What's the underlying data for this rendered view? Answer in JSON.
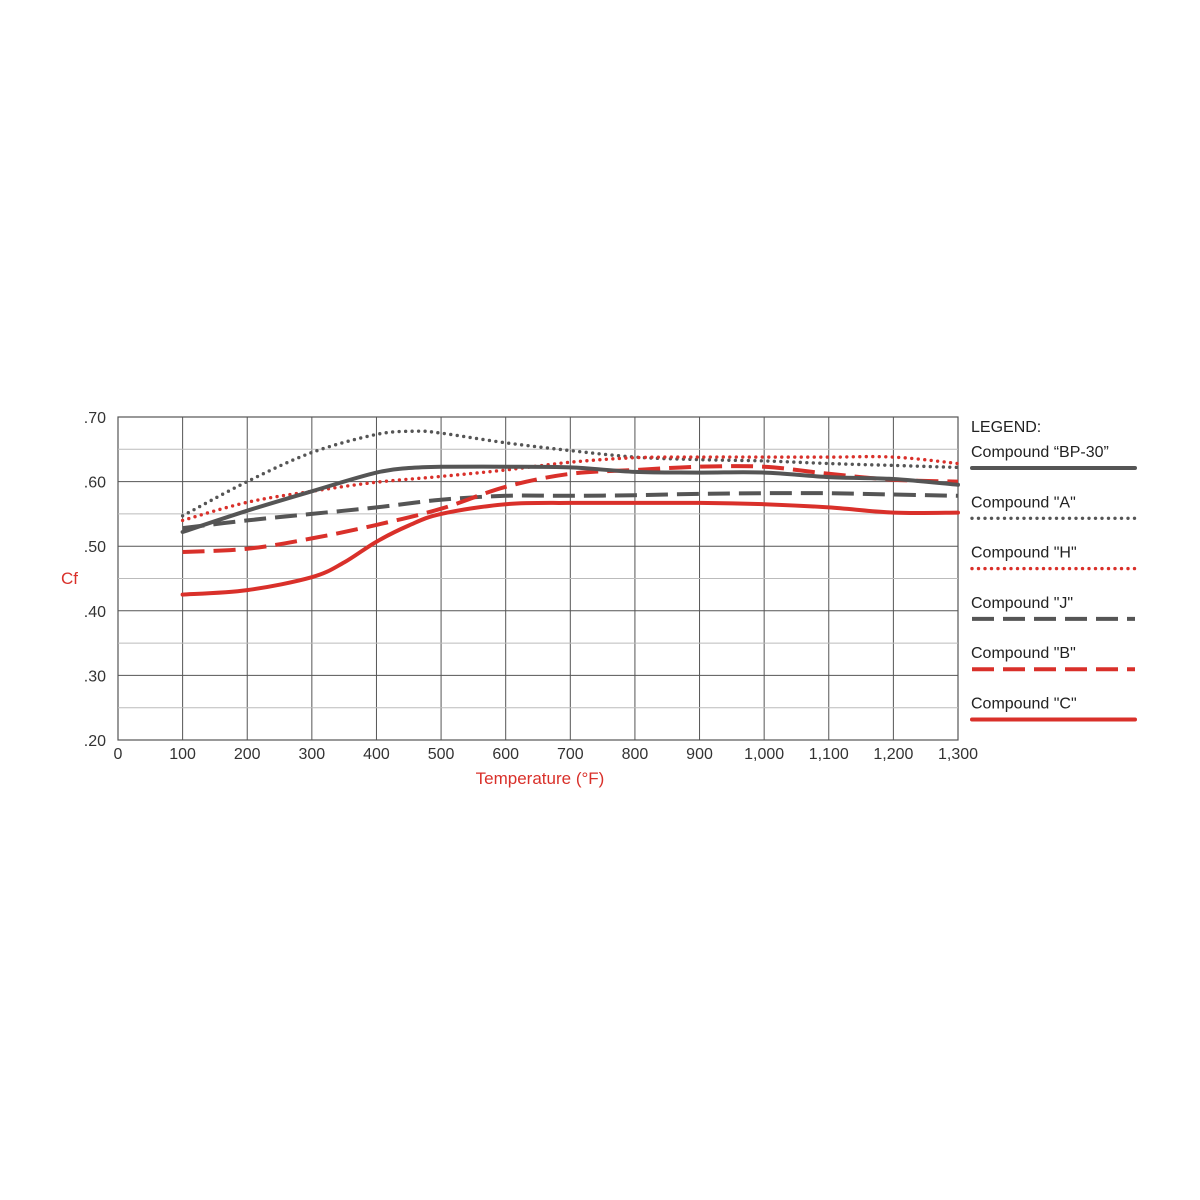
{
  "chart_data": {
    "type": "line",
    "xlabel": "Temperature (°F)",
    "ylabel": "Cf",
    "xlim": [
      0,
      1300
    ],
    "ylim": [
      0.2,
      0.7
    ],
    "x_ticks": [
      0,
      100,
      200,
      300,
      400,
      500,
      600,
      700,
      800,
      900,
      1000,
      1100,
      1200,
      1300
    ],
    "x_tick_labels": [
      "0",
      "100",
      "200",
      "300",
      "400",
      "500",
      "600",
      "700",
      "800",
      "900",
      "1,000",
      "1,100",
      "1,200",
      "1,300"
    ],
    "y_ticks": [
      0.2,
      0.3,
      0.4,
      0.5,
      0.6,
      0.7
    ],
    "y_tick_labels": [
      ".20",
      ".30",
      ".40",
      ".50",
      ".60",
      ".70"
    ],
    "grid": true,
    "legend": {
      "title": "LEGEND:",
      "placement": "right"
    },
    "series": [
      {
        "name": "Compound “BP-30”",
        "color": "#555555",
        "style": "solid",
        "points": [
          [
            100,
            0.522
          ],
          [
            200,
            0.555
          ],
          [
            300,
            0.585
          ],
          [
            400,
            0.614
          ],
          [
            450,
            0.621
          ],
          [
            500,
            0.623
          ],
          [
            600,
            0.623
          ],
          [
            700,
            0.622
          ],
          [
            800,
            0.615
          ],
          [
            900,
            0.614
          ],
          [
            1000,
            0.614
          ],
          [
            1100,
            0.607
          ],
          [
            1200,
            0.604
          ],
          [
            1300,
            0.595
          ]
        ]
      },
      {
        "name": "Compound \"A\"",
        "color": "#555555",
        "style": "dotted",
        "points": [
          [
            100,
            0.547
          ],
          [
            200,
            0.6
          ],
          [
            300,
            0.645
          ],
          [
            400,
            0.673
          ],
          [
            460,
            0.678
          ],
          [
            500,
            0.675
          ],
          [
            600,
            0.66
          ],
          [
            700,
            0.648
          ],
          [
            800,
            0.638
          ],
          [
            900,
            0.634
          ],
          [
            1000,
            0.632
          ],
          [
            1100,
            0.628
          ],
          [
            1200,
            0.625
          ],
          [
            1300,
            0.622
          ]
        ]
      },
      {
        "name": "Compound \"H\"",
        "color": "#d9302a",
        "style": "dotted",
        "points": [
          [
            100,
            0.54
          ],
          [
            200,
            0.568
          ],
          [
            300,
            0.585
          ],
          [
            400,
            0.599
          ],
          [
            500,
            0.608
          ],
          [
            600,
            0.618
          ],
          [
            700,
            0.63
          ],
          [
            800,
            0.637
          ],
          [
            900,
            0.638
          ],
          [
            1000,
            0.638
          ],
          [
            1100,
            0.638
          ],
          [
            1200,
            0.638
          ],
          [
            1300,
            0.628
          ]
        ]
      },
      {
        "name": "Compound \"J\"",
        "color": "#555555",
        "style": "dashed",
        "points": [
          [
            100,
            0.528
          ],
          [
            200,
            0.54
          ],
          [
            300,
            0.55
          ],
          [
            400,
            0.56
          ],
          [
            500,
            0.572
          ],
          [
            600,
            0.578
          ],
          [
            700,
            0.578
          ],
          [
            800,
            0.579
          ],
          [
            900,
            0.581
          ],
          [
            1000,
            0.582
          ],
          [
            1100,
            0.582
          ],
          [
            1200,
            0.58
          ],
          [
            1300,
            0.578
          ]
        ]
      },
      {
        "name": "Compound \"B\"",
        "color": "#d9302a",
        "style": "dashed",
        "points": [
          [
            100,
            0.491
          ],
          [
            200,
            0.496
          ],
          [
            300,
            0.512
          ],
          [
            400,
            0.533
          ],
          [
            500,
            0.558
          ],
          [
            600,
            0.592
          ],
          [
            700,
            0.612
          ],
          [
            800,
            0.618
          ],
          [
            900,
            0.623
          ],
          [
            1000,
            0.623
          ],
          [
            1100,
            0.612
          ],
          [
            1200,
            0.603
          ],
          [
            1300,
            0.6
          ]
        ]
      },
      {
        "name": "Compound \"C\"",
        "color": "#d9302a",
        "style": "solid",
        "points": [
          [
            100,
            0.425
          ],
          [
            200,
            0.432
          ],
          [
            300,
            0.452
          ],
          [
            350,
            0.475
          ],
          [
            400,
            0.507
          ],
          [
            450,
            0.532
          ],
          [
            500,
            0.55
          ],
          [
            600,
            0.565
          ],
          [
            700,
            0.567
          ],
          [
            800,
            0.567
          ],
          [
            900,
            0.567
          ],
          [
            1000,
            0.565
          ],
          [
            1100,
            0.56
          ],
          [
            1200,
            0.552
          ],
          [
            1300,
            0.552
          ]
        ]
      }
    ]
  }
}
